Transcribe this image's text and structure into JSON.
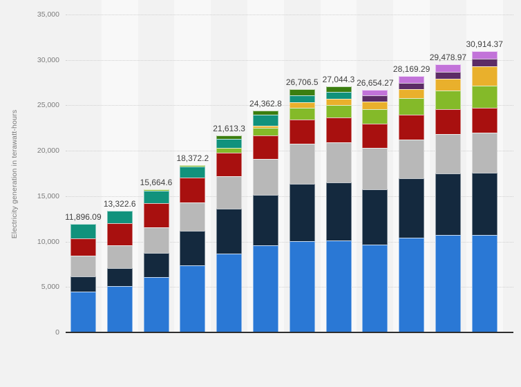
{
  "page": {
    "background": "#f2f2f2"
  },
  "y_axis": {
    "title": "Electricity generation in terawatt-hours",
    "ticks": [
      {
        "label": "0",
        "value": 0
      },
      {
        "label": "5,000",
        "value": 5000
      },
      {
        "label": "10,000",
        "value": 10000
      },
      {
        "label": "15,000",
        "value": 15000
      },
      {
        "label": "20,000",
        "value": 20000
      },
      {
        "label": "25,000",
        "value": 25000
      },
      {
        "label": "30,000",
        "value": 30000
      },
      {
        "label": "35,000",
        "value": 35000
      }
    ]
  },
  "chart_data": {
    "type": "bar",
    "stacked": true,
    "title": "",
    "xlabel": "",
    "ylabel": "Electricity generation in terawatt-hours",
    "ylim": [
      0,
      35000
    ],
    "grid": "horizontal-dotted",
    "legend_position": "none-visible",
    "x_tick_labels_visible": false,
    "colors": {
      "blue": "#2a78d5",
      "dark-navy": "#14293e",
      "gray": "#b8b8b8",
      "dark-red": "#a8100f",
      "teal": "#11927c",
      "light-green": "#84ba29",
      "yellow": "#e9b02c",
      "dark-green": "#3b7e10",
      "dark-purple": "#5c2c66",
      "light-purple": "#c273d9"
    },
    "bars": [
      {
        "total_label": "11,896.09",
        "total": 11896.09,
        "segments": [
          [
            "blue",
            4414
          ],
          [
            "dark-navy",
            1674
          ],
          [
            "gray",
            2283
          ],
          [
            "dark-red",
            1925
          ],
          [
            "teal",
            1600.09
          ]
        ]
      },
      {
        "total_label": "13,322.6",
        "total": 13322.6,
        "segments": [
          [
            "blue",
            5022
          ],
          [
            "dark-navy",
            1979
          ],
          [
            "gray",
            2535
          ],
          [
            "dark-red",
            2389
          ],
          [
            "teal",
            1397.6
          ]
        ]
      },
      {
        "total_label": "15,664.6",
        "total": 15664.6,
        "segments": [
          [
            "blue",
            6035
          ],
          [
            "dark-navy",
            2664
          ],
          [
            "gray",
            2792
          ],
          [
            "dark-red",
            2664
          ],
          [
            "teal",
            1360
          ],
          [
            "light-green",
            149.6
          ]
        ]
      },
      {
        "total_label": "18,372.2",
        "total": 18372.2,
        "segments": [
          [
            "blue",
            7306
          ],
          [
            "dark-navy",
            3804
          ],
          [
            "gray",
            3121
          ],
          [
            "dark-red",
            2716
          ],
          [
            "teal",
            1255
          ],
          [
            "light-green",
            170.2
          ]
        ]
      },
      {
        "total_label": "21,613.3",
        "total": 21613.3,
        "segments": [
          [
            "blue",
            8622
          ],
          [
            "dark-navy",
            4899
          ],
          [
            "gray",
            3601
          ],
          [
            "dark-red",
            2560
          ],
          [
            "light-green",
            560
          ],
          [
            "teal",
            989
          ],
          [
            "dark-green",
            382.3
          ]
        ]
      },
      {
        "total_label": "24,362.8",
        "total": 24362.8,
        "segments": [
          [
            "blue",
            9512
          ],
          [
            "dark-navy",
            5531
          ],
          [
            "gray",
            4007
          ],
          [
            "dark-red",
            2563
          ],
          [
            "light-green",
            838
          ],
          [
            "yellow",
            247
          ],
          [
            "teal",
            1196
          ],
          [
            "dark-green",
            468.8
          ]
        ]
      },
      {
        "total_label": "26,706.5",
        "total": 26706.5,
        "segments": [
          [
            "blue",
            9969
          ],
          [
            "dark-navy",
            6317
          ],
          [
            "gray",
            4400
          ],
          [
            "dark-red",
            2700
          ],
          [
            "light-green",
            1270
          ],
          [
            "yellow",
            585
          ],
          [
            "teal",
            803
          ],
          [
            "dark-green",
            662.5
          ]
        ]
      },
      {
        "total_label": "27,044.3",
        "total": 27044.3,
        "segments": [
          [
            "blue",
            10045
          ],
          [
            "dark-navy",
            6393
          ],
          [
            "gray",
            4415
          ],
          [
            "dark-red",
            2700
          ],
          [
            "light-green",
            1420
          ],
          [
            "yellow",
            700
          ],
          [
            "teal",
            760
          ],
          [
            "dark-green",
            611.3
          ]
        ]
      },
      {
        "total_label": "26,654.27",
        "total": 26654.27,
        "segments": [
          [
            "blue",
            9589
          ],
          [
            "dark-navy",
            6088
          ],
          [
            "gray",
            4543
          ],
          [
            "dark-red",
            2680
          ],
          [
            "light-green",
            1590
          ],
          [
            "yellow",
            846
          ],
          [
            "dark-purple",
            680
          ],
          [
            "light-purple",
            638.27
          ]
        ]
      },
      {
        "total_label": "28,169.29",
        "total": 28169.29,
        "segments": [
          [
            "blue",
            10362
          ],
          [
            "dark-navy",
            6524
          ],
          [
            "gray",
            4298
          ],
          [
            "dark-red",
            2680
          ],
          [
            "light-green",
            1840
          ],
          [
            "yellow",
            1030
          ],
          [
            "dark-purple",
            690
          ],
          [
            "light-purple",
            745.29
          ]
        ]
      },
      {
        "total_label": "29,478.97",
        "total": 29478.97,
        "segments": [
          [
            "blue",
            10661
          ],
          [
            "dark-navy",
            6742
          ],
          [
            "gray",
            4390
          ],
          [
            "dark-red",
            2680
          ],
          [
            "light-green",
            2100
          ],
          [
            "yellow",
            1310
          ],
          [
            "dark-purple",
            720
          ],
          [
            "light-purple",
            875.97
          ]
        ]
      },
      {
        "total_label": "30,914.37",
        "total": 30914.37,
        "segments": [
          [
            "blue",
            10654
          ],
          [
            "dark-navy",
            6849
          ],
          [
            "gray",
            4380
          ],
          [
            "dark-red",
            2780
          ],
          [
            "light-green",
            2420
          ],
          [
            "yellow",
            2130
          ],
          [
            "dark-purple",
            810
          ],
          [
            "light-purple",
            891.37
          ]
        ]
      }
    ]
  }
}
